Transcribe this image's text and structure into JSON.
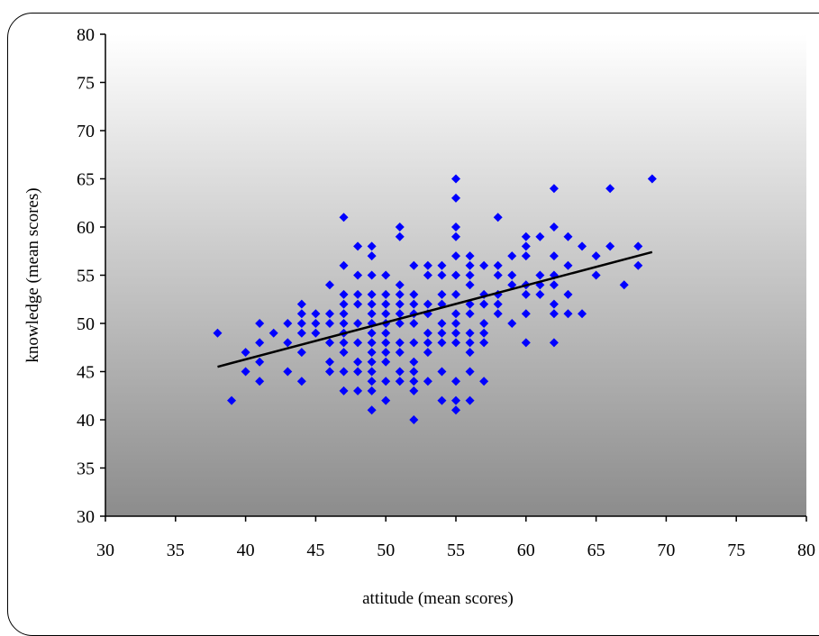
{
  "chart_data": {
    "type": "scatter",
    "title": "",
    "xlabel": "attitude (mean scores)",
    "ylabel": "knowledge (mean scores)",
    "xlim": [
      30,
      80
    ],
    "ylim": [
      30,
      80
    ],
    "xticks": [
      30,
      35,
      40,
      45,
      50,
      55,
      60,
      65,
      70,
      75,
      80
    ],
    "yticks": [
      30,
      35,
      40,
      45,
      50,
      55,
      60,
      65,
      70,
      75,
      80
    ],
    "grid": false,
    "legend": "none",
    "marker": "diamond",
    "marker_color": "#0000FF",
    "plot_background": "gradient white-to-grey (top to bottom)",
    "trendline": {
      "type": "linear",
      "color": "#000000",
      "x": [
        38,
        69
      ],
      "y": [
        45.5,
        57.4
      ]
    },
    "points": [
      [
        38,
        49
      ],
      [
        39,
        42
      ],
      [
        40,
        47
      ],
      [
        40,
        45
      ],
      [
        41,
        50
      ],
      [
        41,
        48
      ],
      [
        41,
        46
      ],
      [
        41,
        44
      ],
      [
        42,
        49
      ],
      [
        43,
        50
      ],
      [
        43,
        48
      ],
      [
        43,
        45
      ],
      [
        44,
        52
      ],
      [
        44,
        51
      ],
      [
        44,
        50
      ],
      [
        44,
        49
      ],
      [
        44,
        47
      ],
      [
        44,
        44
      ],
      [
        45,
        51
      ],
      [
        45,
        50
      ],
      [
        45,
        49
      ],
      [
        46,
        54
      ],
      [
        46,
        51
      ],
      [
        46,
        50
      ],
      [
        46,
        48
      ],
      [
        46,
        46
      ],
      [
        46,
        45
      ],
      [
        47,
        61
      ],
      [
        47,
        56
      ],
      [
        47,
        53
      ],
      [
        47,
        52
      ],
      [
        47,
        51
      ],
      [
        47,
        50
      ],
      [
        47,
        49
      ],
      [
        47,
        48
      ],
      [
        47,
        47
      ],
      [
        47,
        45
      ],
      [
        47,
        43
      ],
      [
        48,
        58
      ],
      [
        48,
        55
      ],
      [
        48,
        53
      ],
      [
        48,
        52
      ],
      [
        48,
        50
      ],
      [
        48,
        48
      ],
      [
        48,
        46
      ],
      [
        48,
        45
      ],
      [
        48,
        43
      ],
      [
        49,
        58
      ],
      [
        49,
        57
      ],
      [
        49,
        55
      ],
      [
        49,
        53
      ],
      [
        49,
        52
      ],
      [
        49,
        51
      ],
      [
        49,
        50
      ],
      [
        49,
        49
      ],
      [
        49,
        48
      ],
      [
        49,
        47
      ],
      [
        49,
        46
      ],
      [
        49,
        45
      ],
      [
        49,
        44
      ],
      [
        49,
        43
      ],
      [
        49,
        41
      ],
      [
        50,
        55
      ],
      [
        50,
        53
      ],
      [
        50,
        52
      ],
      [
        50,
        51
      ],
      [
        50,
        50
      ],
      [
        50,
        49
      ],
      [
        50,
        48
      ],
      [
        50,
        47
      ],
      [
        50,
        46
      ],
      [
        50,
        44
      ],
      [
        50,
        42
      ],
      [
        51,
        60
      ],
      [
        51,
        59
      ],
      [
        51,
        54
      ],
      [
        51,
        53
      ],
      [
        51,
        52
      ],
      [
        51,
        51
      ],
      [
        51,
        50
      ],
      [
        51,
        48
      ],
      [
        51,
        47
      ],
      [
        51,
        45
      ],
      [
        51,
        44
      ],
      [
        52,
        56
      ],
      [
        52,
        53
      ],
      [
        52,
        52
      ],
      [
        52,
        51
      ],
      [
        52,
        50
      ],
      [
        52,
        48
      ],
      [
        52,
        46
      ],
      [
        52,
        45
      ],
      [
        52,
        44
      ],
      [
        52,
        43
      ],
      [
        52,
        40
      ],
      [
        53,
        56
      ],
      [
        53,
        55
      ],
      [
        53,
        52
      ],
      [
        53,
        51
      ],
      [
        53,
        49
      ],
      [
        53,
        48
      ],
      [
        53,
        47
      ],
      [
        53,
        44
      ],
      [
        54,
        56
      ],
      [
        54,
        55
      ],
      [
        54,
        53
      ],
      [
        54,
        52
      ],
      [
        54,
        50
      ],
      [
        54,
        49
      ],
      [
        54,
        48
      ],
      [
        54,
        45
      ],
      [
        54,
        42
      ],
      [
        55,
        65
      ],
      [
        55,
        63
      ],
      [
        55,
        60
      ],
      [
        55,
        59
      ],
      [
        55,
        57
      ],
      [
        55,
        55
      ],
      [
        55,
        53
      ],
      [
        55,
        51
      ],
      [
        55,
        50
      ],
      [
        55,
        49
      ],
      [
        55,
        48
      ],
      [
        55,
        44
      ],
      [
        55,
        42
      ],
      [
        55,
        41
      ],
      [
        56,
        57
      ],
      [
        56,
        56
      ],
      [
        56,
        55
      ],
      [
        56,
        54
      ],
      [
        56,
        52
      ],
      [
        56,
        51
      ],
      [
        56,
        49
      ],
      [
        56,
        48
      ],
      [
        56,
        47
      ],
      [
        56,
        45
      ],
      [
        56,
        42
      ],
      [
        57,
        56
      ],
      [
        57,
        53
      ],
      [
        57,
        52
      ],
      [
        57,
        50
      ],
      [
        57,
        49
      ],
      [
        57,
        48
      ],
      [
        57,
        44
      ],
      [
        58,
        61
      ],
      [
        58,
        56
      ],
      [
        58,
        55
      ],
      [
        58,
        53
      ],
      [
        58,
        52
      ],
      [
        58,
        51
      ],
      [
        59,
        57
      ],
      [
        59,
        55
      ],
      [
        59,
        54
      ],
      [
        59,
        50
      ],
      [
        60,
        59
      ],
      [
        60,
        58
      ],
      [
        60,
        57
      ],
      [
        60,
        54
      ],
      [
        60,
        53
      ],
      [
        60,
        51
      ],
      [
        60,
        48
      ],
      [
        61,
        59
      ],
      [
        61,
        55
      ],
      [
        61,
        54
      ],
      [
        61,
        53
      ],
      [
        62,
        64
      ],
      [
        62,
        60
      ],
      [
        62,
        57
      ],
      [
        62,
        55
      ],
      [
        62,
        54
      ],
      [
        62,
        52
      ],
      [
        62,
        51
      ],
      [
        62,
        48
      ],
      [
        63,
        59
      ],
      [
        63,
        56
      ],
      [
        63,
        53
      ],
      [
        63,
        51
      ],
      [
        64,
        58
      ],
      [
        64,
        51
      ],
      [
        65,
        57
      ],
      [
        65,
        55
      ],
      [
        66,
        64
      ],
      [
        66,
        58
      ],
      [
        67,
        54
      ],
      [
        68,
        58
      ],
      [
        68,
        56
      ],
      [
        69,
        65
      ]
    ]
  }
}
